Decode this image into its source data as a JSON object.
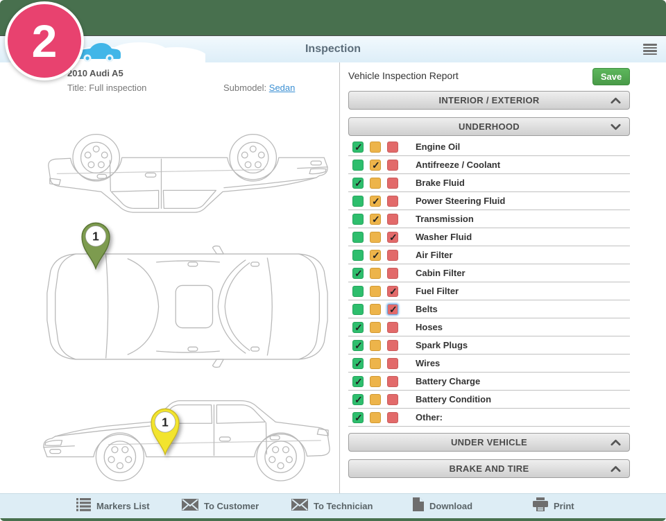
{
  "badge": {
    "number": "2"
  },
  "header": {
    "title": "Inspection"
  },
  "vehicle": {
    "name": "2010 Audi A5",
    "title_line": "Title: Full inspection",
    "submodel_label": "Submodel:",
    "submodel_value": "Sedan"
  },
  "report": {
    "title": "Vehicle Inspection Report",
    "save_label": "Save",
    "sections": [
      {
        "label": "INTERIOR / EXTERIOR",
        "expanded": false
      },
      {
        "label": "UNDERHOOD",
        "expanded": true
      },
      {
        "label": "UNDER VEHICLE",
        "expanded": false
      },
      {
        "label": "BRAKE AND TIRE",
        "expanded": false
      }
    ],
    "items": [
      {
        "label": "Engine Oil",
        "state": "green"
      },
      {
        "label": "Antifreeze / Coolant",
        "state": "yellow"
      },
      {
        "label": "Brake Fluid",
        "state": "green"
      },
      {
        "label": "Power Steering Fluid",
        "state": "yellow"
      },
      {
        "label": "Transmission",
        "state": "yellow"
      },
      {
        "label": "Washer Fluid",
        "state": "red"
      },
      {
        "label": "Air Filter",
        "state": "yellow"
      },
      {
        "label": "Cabin Filter",
        "state": "green"
      },
      {
        "label": "Fuel Filter",
        "state": "red"
      },
      {
        "label": "Belts",
        "state": "red",
        "focused": true
      },
      {
        "label": "Hoses",
        "state": "green"
      },
      {
        "label": "Spark Plugs",
        "state": "green"
      },
      {
        "label": "Wires",
        "state": "green"
      },
      {
        "label": "Battery Charge",
        "state": "green"
      },
      {
        "label": "Battery Condition",
        "state": "green"
      },
      {
        "label": "Other:",
        "state": "green"
      }
    ]
  },
  "markers": [
    {
      "number": "1",
      "color_name": "green"
    },
    {
      "number": "1",
      "color_name": "yellow"
    }
  ],
  "toolbar": {
    "items": [
      {
        "label": "Markers List",
        "icon": "list-icon"
      },
      {
        "label": "To Customer",
        "icon": "envelope-icon"
      },
      {
        "label": "To Technician",
        "icon": "envelope-icon"
      },
      {
        "label": "Download",
        "icon": "file-icon"
      },
      {
        "label": "Print",
        "icon": "print-icon"
      }
    ]
  },
  "colors": {
    "brand-green": "#48704e",
    "badge-pink": "#e8426f",
    "save-green": "#54a452",
    "check-green": "#2ebe6d",
    "check-yellow": "#edb44a",
    "check-red": "#e26a6a",
    "link-blue": "#3a8fd3",
    "pin-green": "#7d9b4f",
    "pin-yellow": "#f2e42e",
    "toolbar-blue": "#ddedf5"
  }
}
